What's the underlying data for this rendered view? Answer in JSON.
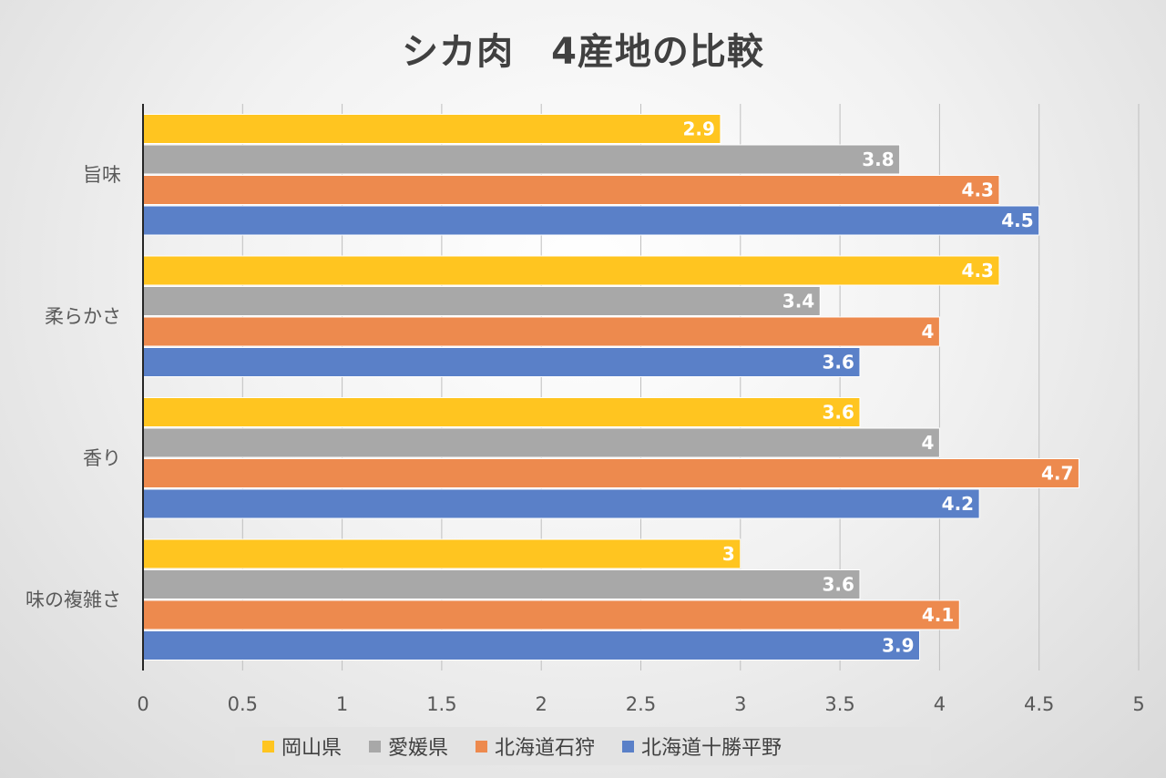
{
  "chart_data": {
    "type": "bar",
    "orientation": "horizontal",
    "title": "シカ肉　4産地の比較",
    "categories": [
      "旨味",
      "柔らかさ",
      "香り",
      "味の複雑さ"
    ],
    "series": [
      {
        "name": "岡山県",
        "color": "#ffc520",
        "values": [
          2.9,
          4.3,
          3.6,
          3.0
        ],
        "labels": [
          "2.9",
          "4.3",
          "3.6",
          "3"
        ]
      },
      {
        "name": "愛媛県",
        "color": "#a8a8a8",
        "values": [
          3.8,
          3.4,
          4.0,
          3.6
        ],
        "labels": [
          "3.8",
          "3.4",
          "4",
          "3.6"
        ]
      },
      {
        "name": "北海道石狩",
        "color": "#ed8a4e",
        "values": [
          4.3,
          4.0,
          4.7,
          4.1
        ],
        "labels": [
          "4.3",
          "4",
          "4.7",
          "4.1"
        ]
      },
      {
        "name": "北海道十勝平野",
        "color": "#5a80c8",
        "values": [
          4.5,
          3.6,
          4.2,
          3.9
        ],
        "labels": [
          "4.5",
          "3.6",
          "4.2",
          "3.9"
        ]
      }
    ],
    "xlim": [
      0,
      5
    ],
    "x_ticks": [
      "0",
      "0.5",
      "1",
      "1.5",
      "2",
      "2.5",
      "3",
      "3.5",
      "4",
      "4.5",
      "5"
    ],
    "grid": "vertical",
    "legend_position": "bottom",
    "data_labels": true
  }
}
